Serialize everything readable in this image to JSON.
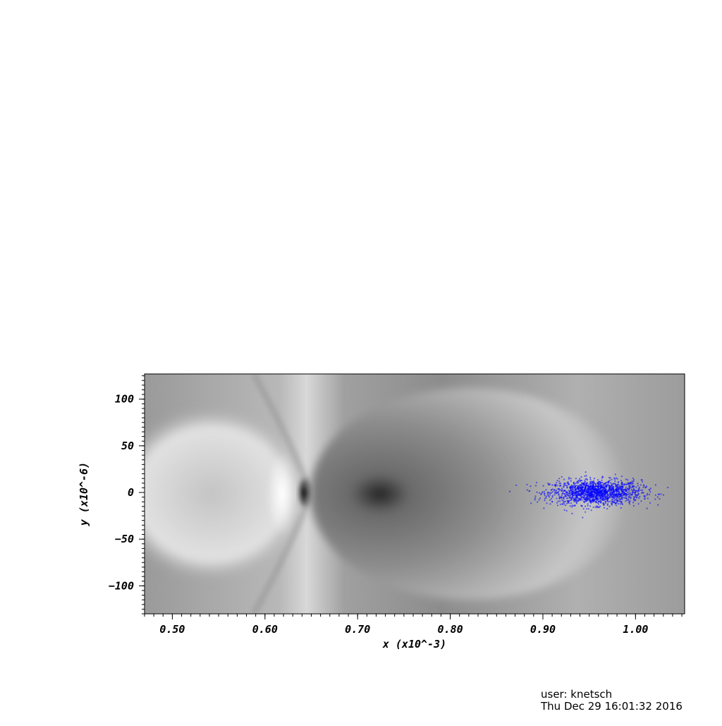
{
  "chart_data": {
    "type": "scatter",
    "title": "",
    "xlabel": "x (x10^-3)",
    "ylabel": "y (x10^-6)",
    "xlim": [
      0.47,
      1.053
    ],
    "ylim": [
      -130,
      127
    ],
    "x_ticks": [
      0.5,
      0.6,
      0.7,
      0.8,
      0.9,
      1.0
    ],
    "x_tick_labels": [
      "0.50",
      "0.60",
      "0.70",
      "0.80",
      "0.90",
      "1.00"
    ],
    "y_ticks": [
      100,
      50,
      0,
      -50,
      -100
    ],
    "y_tick_labels": [
      "100",
      "50",
      "0",
      "−50",
      "−100"
    ],
    "grid": false,
    "background": {
      "kind": "grayscale field map",
      "colormap": "grayscale"
    },
    "series": [
      {
        "values": {
          "x_center": 0.957,
          "y_center": 0,
          "x_spread": 0.074,
          "y_spread": 20
        },
        "color": "#0000ff"
      }
    ]
  },
  "footer": {
    "user": "user: knetsch",
    "date": "Thu Dec 29 16:01:32 2016"
  }
}
